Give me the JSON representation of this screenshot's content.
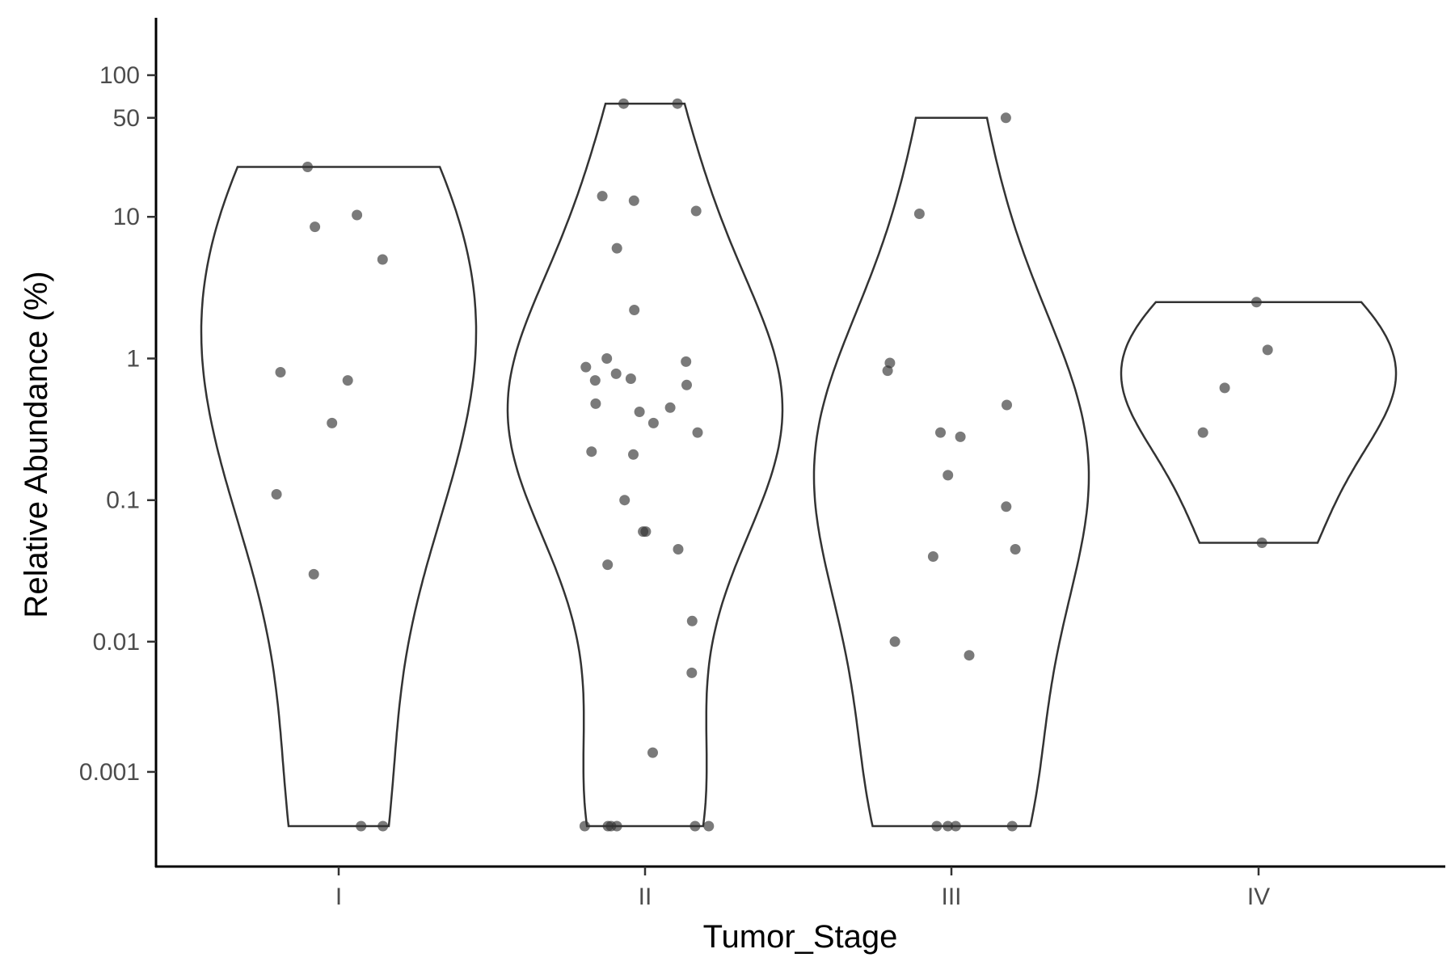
{
  "chart_data": {
    "type": "violin",
    "xlabel": "Tumor_Stage",
    "ylabel": "Relative Abundance (%)",
    "y_scale": "pseudo-log",
    "y_ticks": [
      0.001,
      0.01,
      0.1,
      1,
      10,
      50,
      100
    ],
    "y_tick_labels": [
      "0.001",
      "0.01",
      "0.1",
      "1",
      "10",
      "50",
      "100"
    ],
    "categories": [
      "I",
      "II",
      "III",
      "IV"
    ],
    "points_color": "#333333",
    "violin_stroke": "#333333",
    "groups": [
      {
        "name": "I",
        "values": [
          22.5,
          8.5,
          10.3,
          5.0,
          0.8,
          0.7,
          0.35,
          0.11,
          0.03,
          0,
          0
        ]
      },
      {
        "name": "II",
        "values": [
          63.0,
          63.0,
          14.0,
          13.0,
          11.0,
          6.0,
          2.2,
          1.0,
          0.95,
          0.87,
          0.78,
          0.72,
          0.7,
          0.65,
          0.48,
          0.45,
          0.42,
          0.35,
          0.3,
          0.22,
          0.21,
          0.1,
          0.06,
          0.06,
          0.045,
          0.035,
          0.014,
          0.006,
          0.0015,
          0,
          0,
          0,
          0,
          0,
          0
        ]
      },
      {
        "name": "III",
        "values": [
          50.0,
          10.5,
          0.93,
          0.82,
          0.47,
          0.3,
          0.28,
          0.15,
          0.09,
          0.045,
          0.04,
          0.01,
          0.008,
          0,
          0,
          0,
          0
        ]
      },
      {
        "name": "IV",
        "values": [
          2.5,
          1.15,
          0.62,
          0.3,
          0.05
        ]
      }
    ]
  }
}
